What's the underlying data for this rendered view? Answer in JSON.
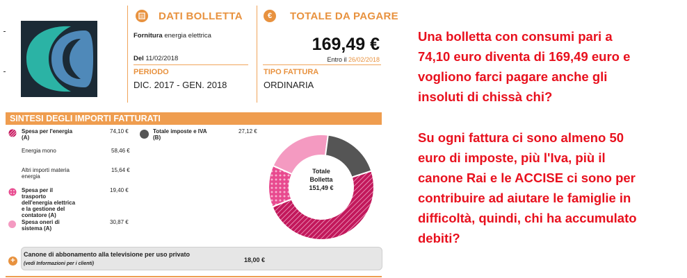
{
  "bill": {
    "dati_header": "DATI BOLLETTA",
    "fornitura_bold": "Fornitura",
    "fornitura_rest": " energia elettrica",
    "del_bold": "Del",
    "del_date": " 11/02/2018",
    "periodo_label": "PERIODO",
    "periodo_value": "DIC. 2017 - GEN. 2018",
    "totale_header": "TOTALE DA PAGARE",
    "totale_amount": "169,49 €",
    "entro_label": "Entro il ",
    "entro_date": "26/02/2018",
    "tipo_label": "TIPO FATTURA",
    "tipo_value": "ORDINARIA"
  },
  "sintesi": {
    "header": "SINTESI DEGLI IMPORTI FATTURATI",
    "energia_label": "Spesa per l'energia",
    "energia_sub": "(A)",
    "energia_amount": "74,10 €",
    "mono_label": "Energia mono",
    "mono_amount": "58,46 €",
    "altri_label_1": "Altri importi materia",
    "altri_label_2": "energia",
    "altri_amount": "15,64 €",
    "trasporto_lines": [
      "Spesa per il",
      "trasporto",
      "dell'energia elettrica",
      "e la gestione del",
      "contatore (A)"
    ],
    "trasporto_amount": "19,40 €",
    "oneri_lines": [
      "Spesa oneri di",
      "sistema (A)"
    ],
    "oneri_amount": "30,87 €",
    "imposte_label": "Totale imposte e IVA",
    "imposte_sub": "(B)",
    "imposte_amount": "27,12 €",
    "donut_line1": "Totale",
    "donut_line2": "Bolletta",
    "donut_line3": "151,49 €"
  },
  "canone": {
    "label": "Canone di abbonamento alla televisione per uso privato",
    "note": "(vedi Informazioni per i clienti)",
    "amount": "18,00 €"
  },
  "comment": {
    "p1": [
      "Una bolletta con consumi pari a",
      "74,10 euro diventa di 169,49 euro e",
      "vogliono farci pagare anche gli",
      "insoluti di chissà chi?"
    ],
    "p2": [
      "Su ogni fattura ci sono almeno 50",
      "euro di imposte, più l'Iva, più il",
      "canone Rai e le ACCISE ci sono per",
      "contribuire ad aiutare le famiglie in",
      "difficoltà, quindi, chi ha accumulato",
      "debiti?"
    ]
  },
  "colors": {
    "accent": "#e8923f",
    "energia": "#c2185b",
    "oneri": "#f49ac1",
    "imposte": "#555555",
    "trasporto": "#e84a8f"
  }
}
